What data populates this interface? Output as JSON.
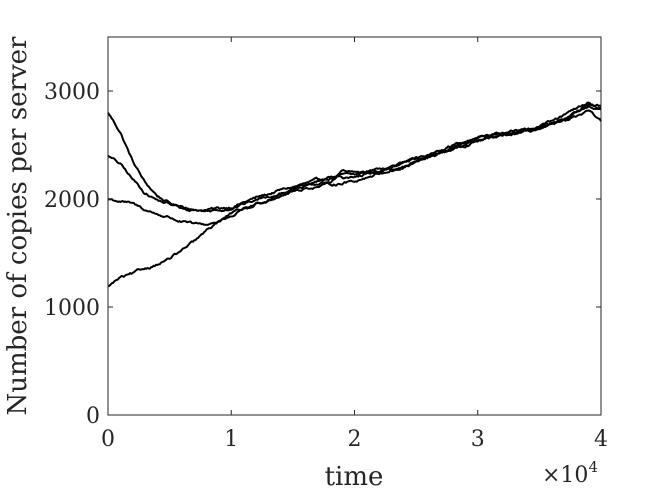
{
  "chart_data": {
    "type": "line",
    "title": "",
    "xlabel": "time",
    "ylabel": "Number of copies per server",
    "x_multiplier_text": "×10",
    "x_multiplier_exponent": "4",
    "xlim": [
      0,
      40000
    ],
    "ylim": [
      0,
      3500
    ],
    "x_ticks": [
      0,
      10000,
      20000,
      30000,
      40000
    ],
    "x_tick_labels": [
      "0",
      "1",
      "2",
      "3",
      "4"
    ],
    "y_ticks": [
      0,
      1000,
      2000,
      3000
    ],
    "y_tick_labels": [
      "0",
      "1000",
      "2000",
      "3000"
    ],
    "grid": false,
    "line_color": "#000000",
    "x": [
      0,
      1000,
      2000,
      3000,
      4000,
      5000,
      6000,
      7000,
      8000,
      9000,
      10000,
      12000,
      14000,
      16000,
      18000,
      19000,
      20000,
      22000,
      24000,
      26000,
      28000,
      30000,
      32000,
      34000,
      36000,
      38000,
      39000,
      40000
    ],
    "series": [
      {
        "values": [
          2800,
          2620,
          2350,
          2150,
          2030,
          1960,
          1920,
          1900,
          1900,
          1910,
          1930,
          2010,
          2080,
          2140,
          2190,
          2220,
          2220,
          2260,
          2300,
          2380,
          2470,
          2540,
          2600,
          2650,
          2700,
          2790,
          2850,
          2840
        ]
      },
      {
        "values": [
          2400,
          2320,
          2180,
          2060,
          1990,
          1950,
          1920,
          1900,
          1890,
          1900,
          1920,
          1990,
          2060,
          2120,
          2150,
          2260,
          2240,
          2280,
          2330,
          2400,
          2480,
          2560,
          2610,
          2640,
          2710,
          2830,
          2890,
          2830
        ]
      },
      {
        "values": [
          2000,
          1980,
          1950,
          1900,
          1860,
          1830,
          1790,
          1760,
          1760,
          1800,
          1860,
          1950,
          2040,
          2100,
          2130,
          2150,
          2170,
          2240,
          2300,
          2390,
          2460,
          2530,
          2580,
          2620,
          2680,
          2760,
          2800,
          2720
        ]
      },
      {
        "values": [
          1190,
          1270,
          1300,
          1350,
          1400,
          1450,
          1520,
          1600,
          1700,
          1790,
          1850,
          1960,
          2030,
          2120,
          2200,
          2190,
          2210,
          2250,
          2320,
          2410,
          2500,
          2570,
          2610,
          2640,
          2690,
          2790,
          2870,
          2860
        ]
      }
    ]
  }
}
